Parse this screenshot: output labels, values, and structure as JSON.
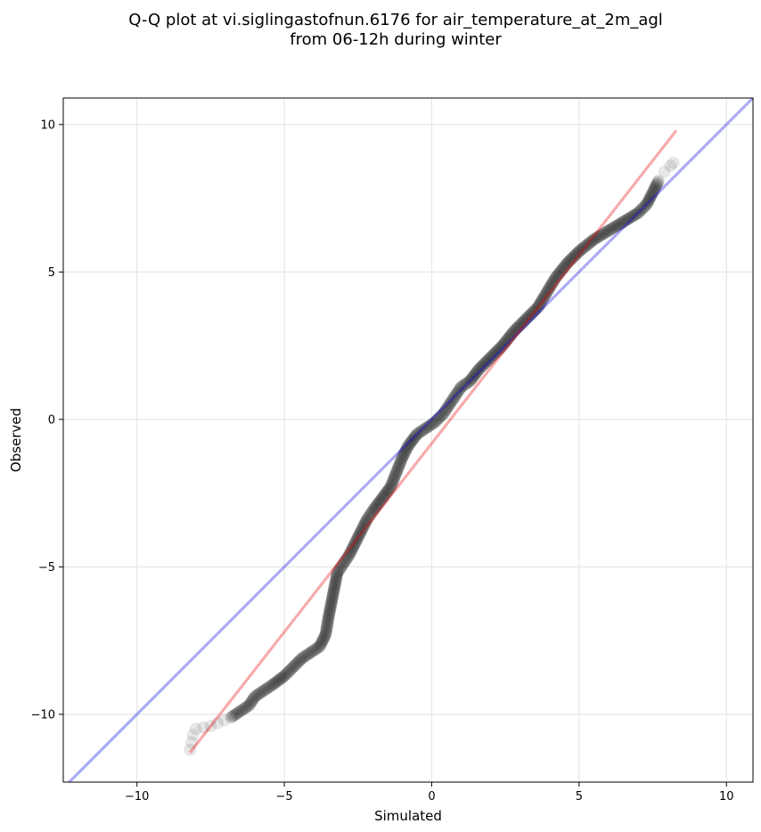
{
  "chart_data": {
    "type": "scatter",
    "title_lines": [
      "Q-Q plot at vi.siglingastofnun.6176 for air_temperature_at_2m_agl",
      "from 06-12h during winter"
    ],
    "xlabel": "Simulated",
    "ylabel": "Observed",
    "xlim": [
      -12.5,
      10.9
    ],
    "ylim": [
      -12.3,
      10.9
    ],
    "xticks": [
      -10,
      -5,
      0,
      5,
      10
    ],
    "yticks": [
      -10,
      -5,
      0,
      5,
      10
    ],
    "xtick_labels": [
      "−10",
      "−5",
      "0",
      "5",
      "10"
    ],
    "ytick_labels": [
      "−10",
      "−5",
      "0",
      "5",
      "10"
    ],
    "grid": true,
    "colors": {
      "points": "#000000",
      "identity_line": "#0000e6",
      "fit_line": "#e60000",
      "grid": "#e6e6e6"
    },
    "identity_line": {
      "x": [
        -12.5,
        10.9
      ],
      "y": [
        -12.5,
        10.9
      ]
    },
    "fit_line": {
      "x": [
        -8.2,
        8.3
      ],
      "y": [
        -11.3,
        9.8
      ]
    },
    "quantile_curve": [
      [
        -8.2,
        -11.2
      ],
      [
        -8.1,
        -10.7
      ],
      [
        -8.0,
        -10.5
      ],
      [
        -7.5,
        -10.4
      ],
      [
        -6.8,
        -10.1
      ],
      [
        -6.5,
        -9.9
      ],
      [
        -6.2,
        -9.7
      ],
      [
        -6.0,
        -9.4
      ],
      [
        -5.7,
        -9.2
      ],
      [
        -5.4,
        -9.0
      ],
      [
        -5.0,
        -8.7
      ],
      [
        -4.7,
        -8.4
      ],
      [
        -4.4,
        -8.1
      ],
      [
        -4.1,
        -7.9
      ],
      [
        -3.8,
        -7.7
      ],
      [
        -3.6,
        -7.3
      ],
      [
        -3.5,
        -6.7
      ],
      [
        -3.4,
        -6.2
      ],
      [
        -3.3,
        -5.7
      ],
      [
        -3.2,
        -5.2
      ],
      [
        -3.0,
        -4.9
      ],
      [
        -2.8,
        -4.6
      ],
      [
        -2.6,
        -4.2
      ],
      [
        -2.4,
        -3.8
      ],
      [
        -2.2,
        -3.4
      ],
      [
        -2.0,
        -3.1
      ],
      [
        -1.7,
        -2.7
      ],
      [
        -1.4,
        -2.3
      ],
      [
        -1.2,
        -1.8
      ],
      [
        -1.0,
        -1.3
      ],
      [
        -0.8,
        -0.9
      ],
      [
        -0.5,
        -0.5
      ],
      [
        -0.2,
        -0.3
      ],
      [
        0.1,
        -0.1
      ],
      [
        0.4,
        0.2
      ],
      [
        0.6,
        0.5
      ],
      [
        0.8,
        0.8
      ],
      [
        1.0,
        1.1
      ],
      [
        1.3,
        1.3
      ],
      [
        1.6,
        1.7
      ],
      [
        2.0,
        2.1
      ],
      [
        2.4,
        2.5
      ],
      [
        2.8,
        3.0
      ],
      [
        3.2,
        3.4
      ],
      [
        3.6,
        3.8
      ],
      [
        3.9,
        4.3
      ],
      [
        4.2,
        4.8
      ],
      [
        4.6,
        5.3
      ],
      [
        5.0,
        5.7
      ],
      [
        5.5,
        6.1
      ],
      [
        6.0,
        6.4
      ],
      [
        6.5,
        6.7
      ],
      [
        7.0,
        7.0
      ],
      [
        7.3,
        7.3
      ],
      [
        7.5,
        7.7
      ],
      [
        7.7,
        8.1
      ],
      [
        7.9,
        8.4
      ],
      [
        8.1,
        8.6
      ],
      [
        8.2,
        8.7
      ]
    ]
  }
}
